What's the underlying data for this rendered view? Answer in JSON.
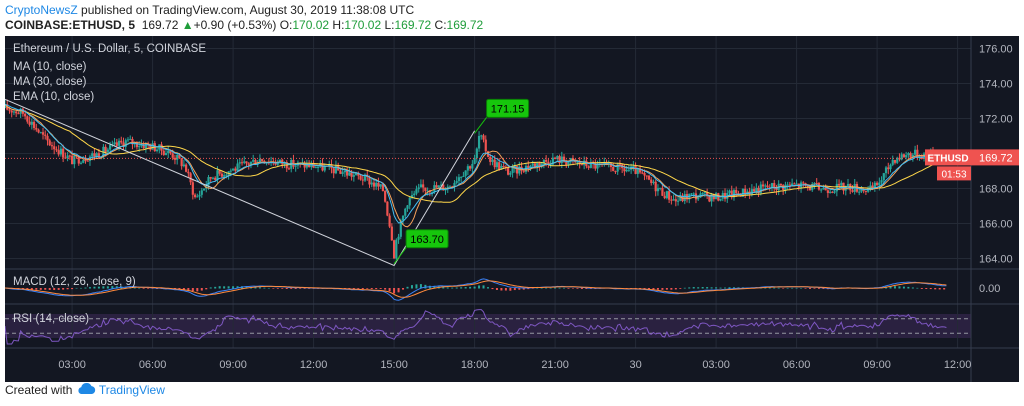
{
  "header": {
    "author": "CryptoNewsZ",
    "published_text": "published on TradingView.com, August 30, 2019 11:38:08 UTC",
    "symbol": "COINBASE:ETHUSD, 5",
    "last": "169.72",
    "change_arrow": "▲",
    "change": "+0.90 (+0.53%)",
    "o_label": "O:",
    "o_value": "170.02",
    "h_label": "H:",
    "h_value": "170.02",
    "l_label": "L:",
    "l_value": "169.72",
    "c_label": "C:",
    "c_value": "169.72"
  },
  "footer": {
    "created_with": "Created with",
    "brand": "TradingView",
    "brand_icon": "tradingview-cloud-icon"
  },
  "colors": {
    "background": "#131722",
    "grid": "#242a36",
    "axis_text": "#b2b5be",
    "bull": "#26a69a",
    "bear": "#ef5350",
    "ma10": "#f6a25b",
    "ma30": "#ffd74a",
    "ema10": "#42bff5",
    "macd": "#3b82f6",
    "signal": "#ff8a3d",
    "rsi": "#7e57c2",
    "price_line": "#ef5350",
    "label_green": "#16c60c",
    "annotation_line": "#d1d4dc"
  },
  "chart_data": {
    "type": "candlestick",
    "title": "Ethereum / U.S. Dollar, 5, COINBASE",
    "indicator_labels": [
      "MA (10, close)",
      "MA (30, close)",
      "EMA (10, close)"
    ],
    "x_tick_labels": [
      "03:00",
      "06:00",
      "09:00",
      "12:00",
      "15:00",
      "18:00",
      "21:00",
      "30",
      "03:00",
      "06:00",
      "09:00",
      "12:00"
    ],
    "x_tick_hours": [
      3,
      6,
      9,
      12,
      15,
      18,
      21,
      24,
      27,
      30,
      33,
      36
    ],
    "x_range_hours": [
      0.5,
      36.5
    ],
    "ylim": [
      163.4,
      176.6
    ],
    "y_ticks": [
      164,
      166,
      168,
      170,
      172,
      174,
      176
    ],
    "y_tick_labels": [
      "164.00",
      "166.00",
      "168.00",
      "170.00",
      "172.00",
      "174.00",
      "176.00"
    ],
    "price_path": [
      {
        "h": 0.5,
        "p": 172.6
      },
      {
        "h": 1.2,
        "p": 172.3
      },
      {
        "h": 2.0,
        "p": 170.8
      },
      {
        "h": 3.0,
        "p": 169.6
      },
      {
        "h": 4.0,
        "p": 170.0
      },
      {
        "h": 5.0,
        "p": 170.7
      },
      {
        "h": 6.0,
        "p": 170.4
      },
      {
        "h": 6.7,
        "p": 170.0
      },
      {
        "h": 7.2,
        "p": 169.3
      },
      {
        "h": 7.6,
        "p": 167.4
      },
      {
        "h": 8.2,
        "p": 168.7
      },
      {
        "h": 9.0,
        "p": 169.1
      },
      {
        "h": 10.0,
        "p": 169.7
      },
      {
        "h": 11.0,
        "p": 169.4
      },
      {
        "h": 12.0,
        "p": 169.3
      },
      {
        "h": 13.0,
        "p": 169.0
      },
      {
        "h": 14.0,
        "p": 168.5
      },
      {
        "h": 14.6,
        "p": 167.9
      },
      {
        "h": 15.0,
        "p": 164.6
      },
      {
        "h": 15.5,
        "p": 167.3
      },
      {
        "h": 16.0,
        "p": 168.0
      },
      {
        "h": 17.0,
        "p": 168.1
      },
      {
        "h": 18.0,
        "p": 169.6
      },
      {
        "h": 18.2,
        "p": 171.0
      },
      {
        "h": 18.6,
        "p": 169.6
      },
      {
        "h": 19.3,
        "p": 168.9
      },
      {
        "h": 20.0,
        "p": 169.3
      },
      {
        "h": 21.0,
        "p": 169.7
      },
      {
        "h": 22.0,
        "p": 169.4
      },
      {
        "h": 23.0,
        "p": 169.2
      },
      {
        "h": 24.0,
        "p": 169.0
      },
      {
        "h": 25.0,
        "p": 167.8
      },
      {
        "h": 25.5,
        "p": 167.3
      },
      {
        "h": 26.0,
        "p": 167.6
      },
      {
        "h": 27.0,
        "p": 167.5
      },
      {
        "h": 28.0,
        "p": 167.8
      },
      {
        "h": 29.0,
        "p": 168.1
      },
      {
        "h": 30.0,
        "p": 168.2
      },
      {
        "h": 31.0,
        "p": 168.0
      },
      {
        "h": 32.0,
        "p": 168.1
      },
      {
        "h": 32.8,
        "p": 167.9
      },
      {
        "h": 33.2,
        "p": 168.6
      },
      {
        "h": 33.6,
        "p": 169.7
      },
      {
        "h": 34.2,
        "p": 170.0
      },
      {
        "h": 35.0,
        "p": 169.9
      },
      {
        "h": 35.6,
        "p": 169.72
      }
    ],
    "trend_line": [
      {
        "h": 0.5,
        "p": 173.1
      },
      {
        "h": 15.0,
        "p": 163.6
      },
      {
        "h": 18.0,
        "p": 171.3
      }
    ],
    "callouts": [
      {
        "h": 18.0,
        "p": 171.15,
        "label": "171.15"
      },
      {
        "h": 15.0,
        "p": 163.7,
        "label": "163.70"
      }
    ],
    "last_price": 169.72,
    "last_price_label": "169.72",
    "symbol_tag": "ETHUSD",
    "countdown": "01:53",
    "macd": {
      "label": "MACD (12, 26, close, 9)",
      "axis_value": 0.0,
      "axis_label": "0.00"
    },
    "rsi": {
      "label": "RSI (14, close)",
      "upper": 70,
      "lower": 30
    }
  }
}
